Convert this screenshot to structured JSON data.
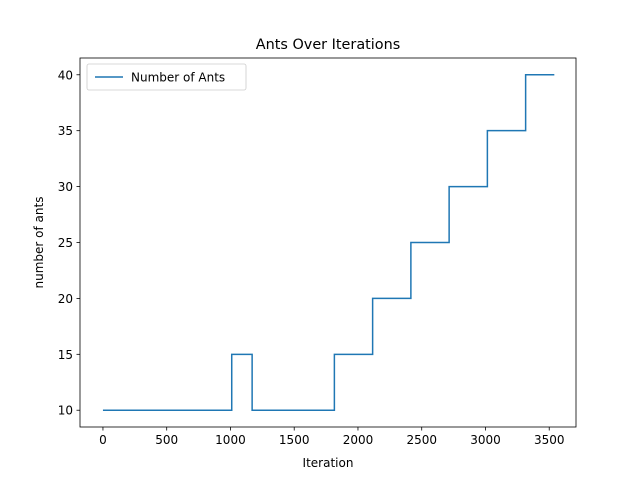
{
  "chart_data": {
    "type": "line",
    "title": "Ants Over Iterations",
    "xlabel": "Iteration",
    "ylabel": "number of ants",
    "xlim": [
      -180,
      3710
    ],
    "ylim": [
      8.5,
      41.5
    ],
    "xticks": [
      0,
      500,
      1000,
      1500,
      2000,
      2500,
      3000,
      3500
    ],
    "yticks": [
      10,
      15,
      20,
      25,
      30,
      35,
      40
    ],
    "grid": false,
    "legend_position": "top-left",
    "series": [
      {
        "name": "Number of Ants",
        "color": "#1f77b4",
        "x": [
          0,
          1010,
          1010,
          1170,
          1170,
          1815,
          1815,
          2115,
          2115,
          2415,
          2415,
          2715,
          2715,
          3015,
          3015,
          3315,
          3315,
          3540
        ],
        "y": [
          10,
          10,
          15,
          15,
          10,
          10,
          15,
          15,
          20,
          20,
          25,
          25,
          30,
          30,
          35,
          35,
          40,
          40
        ]
      }
    ]
  }
}
